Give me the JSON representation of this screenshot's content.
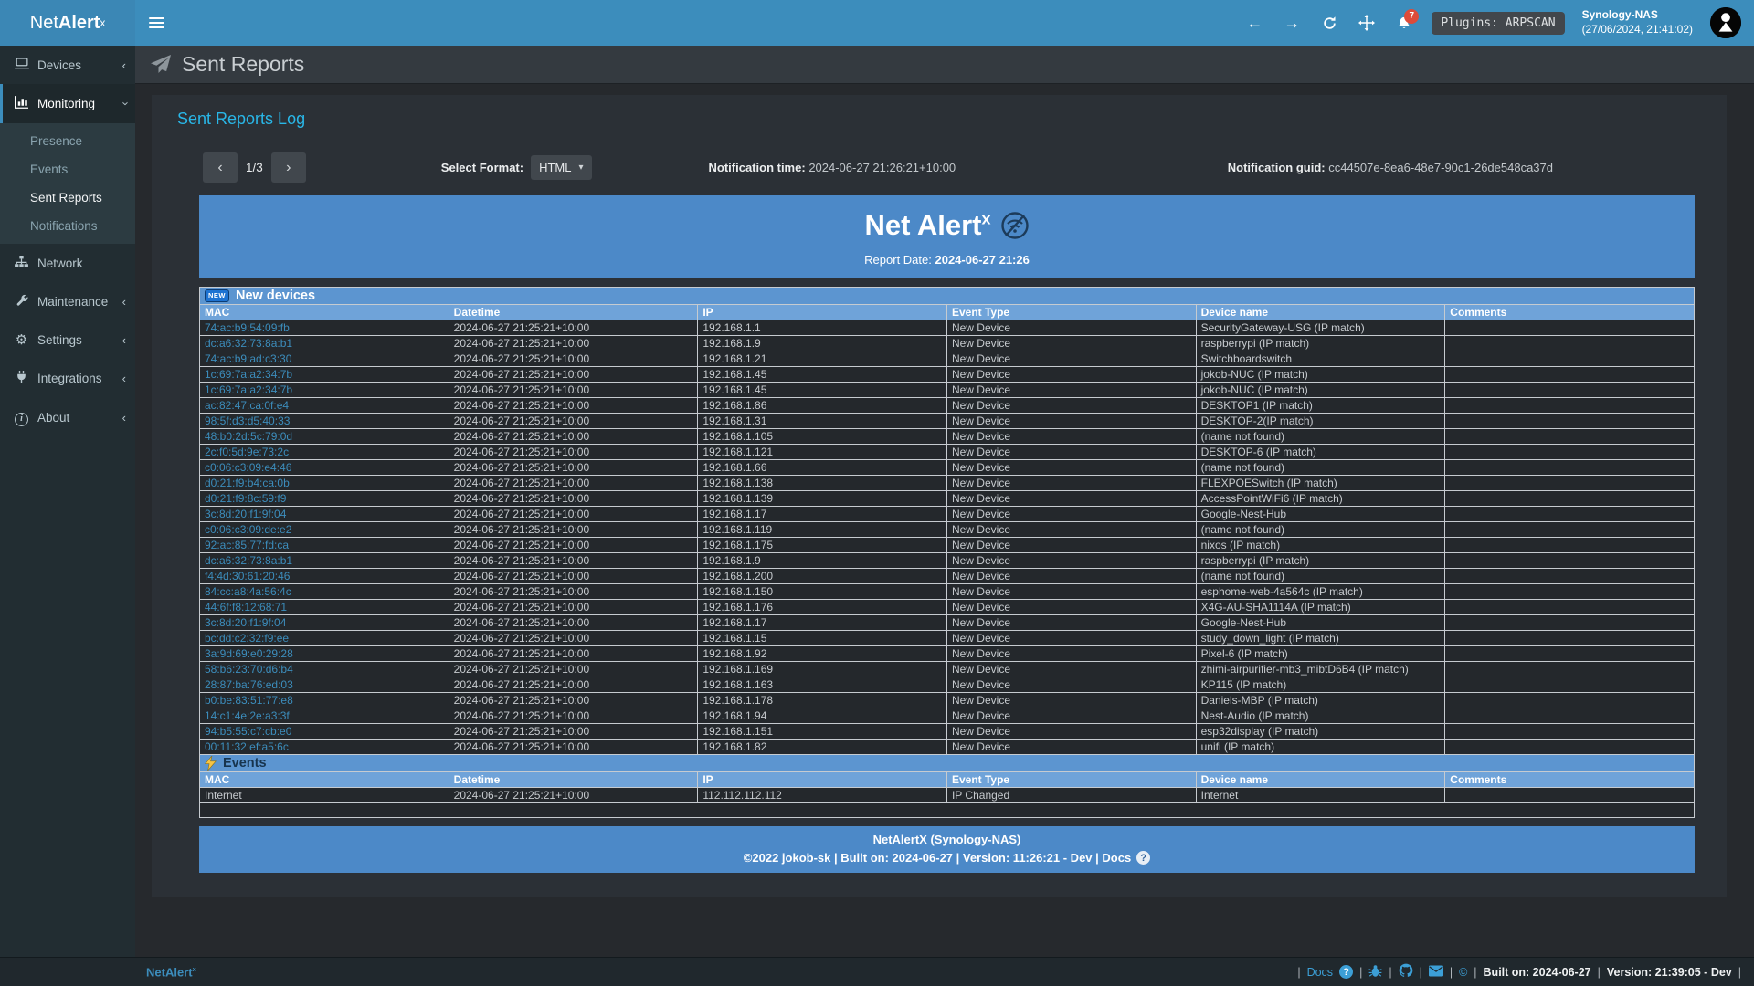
{
  "colors": {
    "navbar_blue": "#3c8dbc",
    "report_header_blue": "#4c89c8",
    "section_bar_blue": "#5c95d0",
    "table_header_blue": "#6fa3d9",
    "link_cyan": "#29b7e8",
    "notification_badge_red": "#dd4b39",
    "sidebar_dark": "#222d32"
  },
  "navbar": {
    "brand_prefix": "Net",
    "brand_bold": "Alert",
    "brand_sup": "x",
    "notification_count": "7",
    "plugins_badge": "Plugins: ARPSCAN",
    "host_name": "Synology-NAS",
    "host_time": "(27/06/2024, 21:41:02)"
  },
  "sidebar": {
    "items": [
      {
        "label": "Devices"
      },
      {
        "label": "Monitoring"
      },
      {
        "label": "Network"
      },
      {
        "label": "Maintenance"
      },
      {
        "label": "Settings"
      },
      {
        "label": "Integrations"
      },
      {
        "label": "About"
      }
    ],
    "monitoring_children": [
      {
        "label": "Presence"
      },
      {
        "label": "Events"
      },
      {
        "label": "Sent Reports"
      },
      {
        "label": "Notifications"
      }
    ]
  },
  "page": {
    "title": "Sent Reports",
    "box_title": "Sent Reports Log"
  },
  "controls": {
    "page_indicator": "1/3",
    "prev_glyph": "‹",
    "next_glyph": "›",
    "format_label": "Select Format:",
    "format_value": "HTML",
    "time_label": "Notification time:",
    "time_value": "2024-06-27 21:26:21+10:00",
    "guid_label": "Notification guid:",
    "guid_value": "cc44507e-8ea6-48e7-90c1-26de548ca37d"
  },
  "report": {
    "title": "Net Alert",
    "title_sup": "x",
    "date_label": "Report Date:",
    "date_value": "2024-06-27 21:26",
    "new_badge": "NEW",
    "new_devices_title": "New devices",
    "events_title": "Events",
    "columns": [
      "MAC",
      "Datetime",
      "IP",
      "Event Type",
      "Device name",
      "Comments"
    ],
    "new_devices_rows": [
      [
        "74:ac:b9:54:09:fb",
        "2024-06-27 21:25:21+10:00",
        "192.168.1.1",
        "New Device",
        "SecurityGateway-USG (IP match)",
        ""
      ],
      [
        "dc:a6:32:73:8a:b1",
        "2024-06-27 21:25:21+10:00",
        "192.168.1.9",
        "New Device",
        "raspberrypi (IP match)",
        ""
      ],
      [
        "74:ac:b9:ad:c3:30",
        "2024-06-27 21:25:21+10:00",
        "192.168.1.21",
        "New Device",
        "Switchboardswitch",
        ""
      ],
      [
        "1c:69:7a:a2:34:7b",
        "2024-06-27 21:25:21+10:00",
        "192.168.1.45",
        "New Device",
        "jokob-NUC (IP match)",
        ""
      ],
      [
        "1c:69:7a:a2:34:7b",
        "2024-06-27 21:25:21+10:00",
        "192.168.1.45",
        "New Device",
        "jokob-NUC (IP match)",
        ""
      ],
      [
        "ac:82:47:ca:0f:e4",
        "2024-06-27 21:25:21+10:00",
        "192.168.1.86",
        "New Device",
        "DESKTOP1 (IP match)",
        ""
      ],
      [
        "98:5f:d3:d5:40:33",
        "2024-06-27 21:25:21+10:00",
        "192.168.1.31",
        "New Device",
        "DESKTOP-2(IP match)",
        ""
      ],
      [
        "48:b0:2d:5c:79:0d",
        "2024-06-27 21:25:21+10:00",
        "192.168.1.105",
        "New Device",
        "(name not found)",
        ""
      ],
      [
        "2c:f0:5d:9e:73:2c",
        "2024-06-27 21:25:21+10:00",
        "192.168.1.121",
        "New Device",
        "DESKTOP-6 (IP match)",
        ""
      ],
      [
        "c0:06:c3:09:e4:46",
        "2024-06-27 21:25:21+10:00",
        "192.168.1.66",
        "New Device",
        "(name not found)",
        ""
      ],
      [
        "d0:21:f9:b4:ca:0b",
        "2024-06-27 21:25:21+10:00",
        "192.168.1.138",
        "New Device",
        "FLEXPOESwitch (IP match)",
        ""
      ],
      [
        "d0:21:f9:8c:59:f9",
        "2024-06-27 21:25:21+10:00",
        "192.168.1.139",
        "New Device",
        "AccessPointWiFi6 (IP match)",
        ""
      ],
      [
        "3c:8d:20:f1:9f:04",
        "2024-06-27 21:25:21+10:00",
        "192.168.1.17",
        "New Device",
        "Google-Nest-Hub",
        ""
      ],
      [
        "c0:06:c3:09:de:e2",
        "2024-06-27 21:25:21+10:00",
        "192.168.1.119",
        "New Device",
        "(name not found)",
        ""
      ],
      [
        "92:ac:85:77:fd:ca",
        "2024-06-27 21:25:21+10:00",
        "192.168.1.175",
        "New Device",
        "nixos (IP match)",
        ""
      ],
      [
        "dc:a6:32:73:8a:b1",
        "2024-06-27 21:25:21+10:00",
        "192.168.1.9",
        "New Device",
        "raspberrypi (IP match)",
        ""
      ],
      [
        "f4:4d:30:61:20:46",
        "2024-06-27 21:25:21+10:00",
        "192.168.1.200",
        "New Device",
        "(name not found)",
        ""
      ],
      [
        "84:cc:a8:4a:56:4c",
        "2024-06-27 21:25:21+10:00",
        "192.168.1.150",
        "New Device",
        "esphome-web-4a564c (IP match)",
        ""
      ],
      [
        "44:6f:f8:12:68:71",
        "2024-06-27 21:25:21+10:00",
        "192.168.1.176",
        "New Device",
        "X4G-AU-SHA1114A (IP match)",
        ""
      ],
      [
        "3c:8d:20:f1:9f:04",
        "2024-06-27 21:25:21+10:00",
        "192.168.1.17",
        "New Device",
        "Google-Nest-Hub",
        ""
      ],
      [
        "bc:dd:c2:32:f9:ee",
        "2024-06-27 21:25:21+10:00",
        "192.168.1.15",
        "New Device",
        "study_down_light (IP match)",
        ""
      ],
      [
        "3a:9d:69:e0:29:28",
        "2024-06-27 21:25:21+10:00",
        "192.168.1.92",
        "New Device",
        "Pixel-6 (IP match)",
        ""
      ],
      [
        "58:b6:23:70:d6:b4",
        "2024-06-27 21:25:21+10:00",
        "192.168.1.169",
        "New Device",
        "zhimi-airpurifier-mb3_mibtD6B4 (IP match)",
        ""
      ],
      [
        "28:87:ba:76:ed:03",
        "2024-06-27 21:25:21+10:00",
        "192.168.1.163",
        "New Device",
        "KP115 (IP match)",
        ""
      ],
      [
        "b0:be:83:51:77:e8",
        "2024-06-27 21:25:21+10:00",
        "192.168.1.178",
        "New Device",
        "Daniels-MBP (IP match)",
        ""
      ],
      [
        "14:c1:4e:2e:a3:3f",
        "2024-06-27 21:25:21+10:00",
        "192.168.1.94",
        "New Device",
        "Nest-Audio (IP match)",
        ""
      ],
      [
        "94:b5:55:c7:cb:e0",
        "2024-06-27 21:25:21+10:00",
        "192.168.1.151",
        "New Device",
        "esp32display (IP match)",
        ""
      ],
      [
        "00:11:32:ef:a5:6c",
        "2024-06-27 21:25:21+10:00",
        "192.168.1.82",
        "New Device",
        "unifi (IP match)",
        ""
      ]
    ],
    "events_rows": [
      [
        "Internet",
        "2024-06-27 21:25:21+10:00",
        "112.112.112.112",
        "IP Changed",
        "Internet",
        ""
      ]
    ],
    "footer_line1": "NetAlertX (Synology-NAS)",
    "footer_line2": "©2022 jokob-sk | Built on: 2024-06-27 | Version: 11:26:21 - Dev | Docs"
  },
  "footer": {
    "brand": "NetAlert",
    "brand_sup": "x",
    "docs_label": "Docs",
    "built": "Built on: 2024-06-27",
    "version": "Version: 21:39:05 - Dev"
  }
}
